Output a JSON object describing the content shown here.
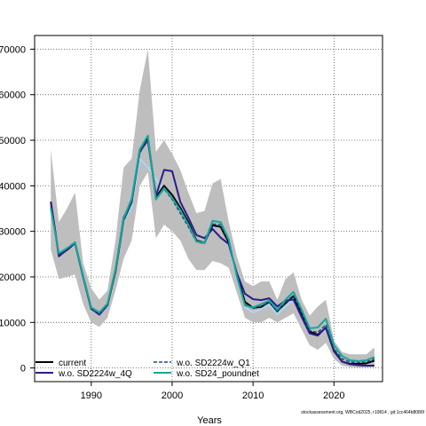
{
  "chart_data": {
    "type": "line",
    "title": "",
    "xlabel": "Years",
    "ylabel": "",
    "xlim": [
      1983,
      2026
    ],
    "ylim": [
      -3000,
      73000
    ],
    "x_ticks": [
      1990,
      2000,
      2010,
      2020
    ],
    "y_ticks": [
      0,
      10000,
      20000,
      30000,
      40000,
      50000,
      60000,
      70000
    ],
    "y_tick_labels": [
      "0",
      "10000",
      "20000",
      "30000",
      "40000",
      "50000",
      "60000",
      "70000"
    ],
    "grid": true,
    "legend_position": "bottom-left",
    "footnote": "stockassessment.org, WBCod2025, r10814 , git:1cc464b8086f",
    "x": [
      1985,
      1986,
      1987,
      1988,
      1989,
      1990,
      1991,
      1992,
      1993,
      1994,
      1995,
      1996,
      1997,
      1998,
      1999,
      2000,
      2001,
      2002,
      2003,
      2004,
      2005,
      2006,
      2007,
      2008,
      2009,
      2010,
      2011,
      2012,
      2013,
      2014,
      2015,
      2016,
      2017,
      2018,
      2019,
      2020,
      2021,
      2022,
      2023,
      2024,
      2025
    ],
    "band": {
      "color": "#bebebe",
      "lower": [
        26000,
        19500,
        20000,
        20500,
        14000,
        10000,
        9000,
        11000,
        17000,
        24000,
        28000,
        40000,
        43000,
        28500,
        31500,
        30000,
        28000,
        24000,
        21500,
        21500,
        23500,
        23000,
        22000,
        16500,
        11000,
        10000,
        10000,
        11000,
        10000,
        11000,
        12000,
        8500,
        5000,
        4000,
        5500,
        2000,
        500,
        200,
        100,
        100,
        200
      ],
      "upper": [
        48000,
        32000,
        35000,
        38500,
        23000,
        17500,
        15000,
        17000,
        28000,
        44000,
        46000,
        61000,
        70000,
        47500,
        50000,
        47000,
        43500,
        38500,
        34000,
        34500,
        40500,
        41500,
        32000,
        24500,
        19000,
        18000,
        19000,
        19000,
        15000,
        19500,
        21000,
        15000,
        11500,
        13500,
        15000,
        6000,
        3500,
        3000,
        3000,
        3000,
        4500
      ]
    },
    "series": [
      {
        "name": "current",
        "color": "#000000",
        "dash": "",
        "width": 2,
        "values": [
          36500,
          24700,
          25900,
          27400,
          20000,
          13000,
          11800,
          13800,
          21200,
          32500,
          36500,
          48000,
          50500,
          37500,
          40000,
          38000,
          35200,
          32000,
          28000,
          27500,
          31300,
          31000,
          27500,
          20500,
          14500,
          13200,
          13400,
          14500,
          12500,
          14200,
          15800,
          12000,
          8000,
          7300,
          8800,
          3700,
          1400,
          900,
          900,
          1000,
          1600
        ]
      },
      {
        "name": "w.o. SD2224w_4Q",
        "color": "#2b1b8c",
        "dash": "",
        "width": 2,
        "values": [
          36500,
          24500,
          26000,
          27500,
          20000,
          13000,
          11700,
          13800,
          21500,
          33000,
          36700,
          47500,
          50000,
          37800,
          43500,
          43200,
          36500,
          33000,
          29200,
          28500,
          30500,
          28600,
          27200,
          20800,
          16300,
          15100,
          14900,
          15300,
          13500,
          14800,
          15000,
          11200,
          7600,
          7100,
          8900,
          3900,
          1400,
          800,
          600,
          500,
          500
        ]
      },
      {
        "name": "w.o. SD2224w_Q1",
        "color": "#1a4d7a",
        "dash": "4,2",
        "width": 1.5,
        "values": [
          35500,
          25000,
          26200,
          27400,
          19800,
          12900,
          11800,
          13700,
          21100,
          32200,
          36200,
          47200,
          50200,
          37000,
          39300,
          37000,
          34000,
          31000,
          27700,
          27300,
          31600,
          31500,
          27800,
          20300,
          14000,
          13000,
          13600,
          14400,
          12300,
          14400,
          16000,
          12200,
          8200,
          7800,
          9500,
          4200,
          2000,
          1300,
          1200,
          1300,
          2000
        ]
      },
      {
        "name": "w.o. SD24_poundnet",
        "color": "#17a69a",
        "dash": "",
        "width": 2,
        "values": [
          35000,
          25200,
          26300,
          27600,
          20200,
          13300,
          12200,
          14100,
          21700,
          32800,
          37200,
          48000,
          51000,
          37000,
          39500,
          37300,
          34700,
          31500,
          27800,
          27500,
          32300,
          32000,
          28200,
          20000,
          13700,
          13300,
          14000,
          14800,
          12800,
          15000,
          16700,
          12800,
          8700,
          8900,
          10800,
          5000,
          2600,
          1700,
          1500,
          1700,
          2400
        ]
      }
    ],
    "extra_lines": [
      {
        "color": "#a6dfff",
        "width": 1.5,
        "values": [
          35200,
          25000,
          26000,
          27000,
          19600,
          12800,
          11700,
          13600,
          21000,
          32000,
          35500,
          46000,
          44000,
          41500,
          39000,
          37500,
          34700,
          31800,
          28000,
          27500,
          31000,
          31200,
          27000,
          19500,
          13300,
          12200,
          12900,
          13900,
          11800,
          13500,
          15000,
          11300,
          7700,
          7200,
          8400,
          3600,
          1500,
          900,
          800,
          900,
          1400
        ]
      }
    ]
  }
}
